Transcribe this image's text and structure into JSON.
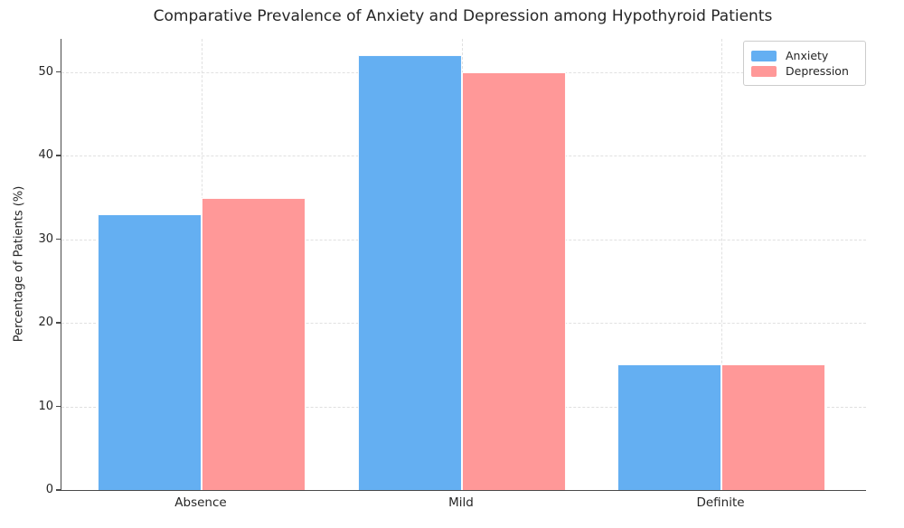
{
  "chart_data": {
    "type": "bar",
    "title": "Comparative Prevalence of Anxiety and Depression among Hypothyroid Patients",
    "categories": [
      "Absence",
      "Mild",
      "Definite"
    ],
    "series": [
      {
        "name": "Anxiety",
        "color": "#64aff2",
        "values": [
          33,
          52,
          15
        ]
      },
      {
        "name": "Depression",
        "color": "#ff9898",
        "values": [
          35,
          50,
          15
        ]
      }
    ],
    "xlabel": "",
    "ylabel": "Percentage of Patients (%)",
    "ylim": [
      0,
      54
    ],
    "yticks": [
      0,
      10,
      20,
      30,
      40,
      50
    ],
    "grid": "dashed horizontal and vertical, light gray",
    "legend_position": "upper right",
    "spines": "left and bottom only"
  }
}
